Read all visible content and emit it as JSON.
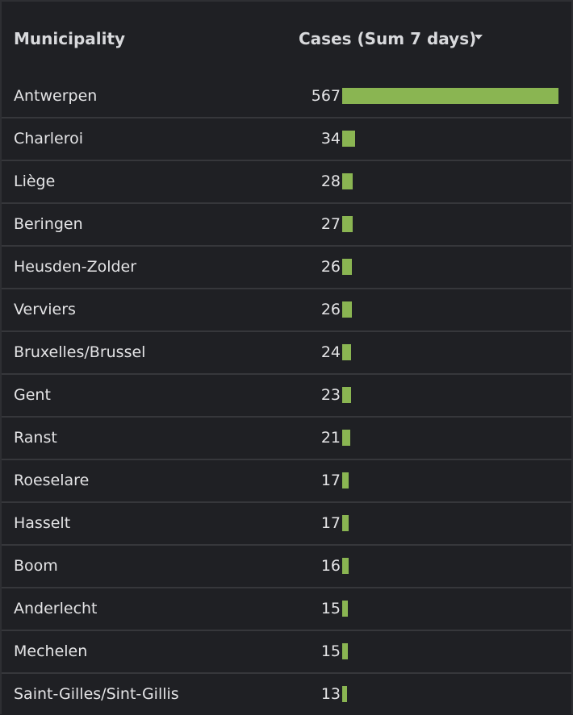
{
  "table": {
    "columns": {
      "municipality": "Municipality",
      "cases": "Cases (Sum 7 days)"
    },
    "sort_icon": "caret-down-icon",
    "bar_color": "#8ab552",
    "max_value": 567,
    "rows": [
      {
        "name": "Antwerpen",
        "value": 567
      },
      {
        "name": "Charleroi",
        "value": 34
      },
      {
        "name": "Liège",
        "value": 28
      },
      {
        "name": "Beringen",
        "value": 27
      },
      {
        "name": "Heusden-Zolder",
        "value": 26
      },
      {
        "name": "Verviers",
        "value": 26
      },
      {
        "name": "Bruxelles/Brussel",
        "value": 24
      },
      {
        "name": "Gent",
        "value": 23
      },
      {
        "name": "Ranst",
        "value": 21
      },
      {
        "name": "Roeselare",
        "value": 17
      },
      {
        "name": "Hasselt",
        "value": 17
      },
      {
        "name": "Boom",
        "value": 16
      },
      {
        "name": "Anderlecht",
        "value": 15
      },
      {
        "name": "Mechelen",
        "value": 15
      },
      {
        "name": "Saint-Gilles/Sint-Gillis",
        "value": 13
      }
    ]
  }
}
